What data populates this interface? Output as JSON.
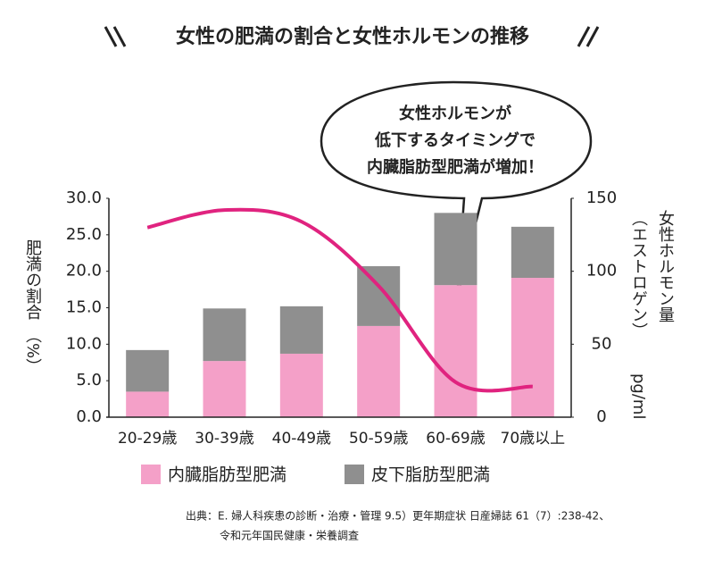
{
  "chart_data": {
    "type": "bar",
    "title": "女性の肥満の割合と女性ホルモンの推移",
    "callout": [
      "女性ホルモンが",
      "低下するタイミングで",
      "内臓脂肪型肥満が増加！"
    ],
    "ylabel": [
      "肥満の割合",
      "（%）"
    ],
    "y2label": [
      "女性ホルモン量",
      "（エストロゲン）",
      "pg/ml"
    ],
    "categories": [
      "20-29歳",
      "30-39歳",
      "40-49歳",
      "50-59歳",
      "60-69歳",
      "70歳以上"
    ],
    "stacked": true,
    "series": [
      {
        "name": "内臓脂肪型肥満",
        "color": "#f4a0c8",
        "values": [
          3.5,
          7.7,
          8.7,
          12.5,
          18.1,
          19.1
        ]
      },
      {
        "name": "皮下脂肪型肥満",
        "color": "#8f8f8f",
        "values": [
          5.7,
          7.2,
          6.5,
          8.2,
          9.9,
          7.0
        ]
      },
      {
        "name": "女性ホルモン量",
        "type": "line",
        "axis": "y2",
        "color": "#e0237f",
        "values": [
          130,
          142,
          134,
          90,
          24,
          21
        ]
      }
    ],
    "ylim": [
      0,
      30
    ],
    "yticks": [
      {
        "value": 0,
        "label": "0.0"
      },
      {
        "value": 5,
        "label": "5.0"
      },
      {
        "value": 10,
        "label": "10.0"
      },
      {
        "value": 15,
        "label": "15.0"
      },
      {
        "value": 20,
        "label": "20.0"
      },
      {
        "value": 25,
        "label": "25.0"
      },
      {
        "value": 30,
        "label": "30.0"
      }
    ],
    "y2lim": [
      0,
      150
    ],
    "y2ticks": [
      0,
      50,
      100,
      150
    ],
    "source": [
      "出典：E. 婦人科疾患の診断・治療・管理 9.5）更年期症状 日産婦誌 61（7）:238-42、",
      "令和元年国民健康・栄養調査"
    ]
  }
}
